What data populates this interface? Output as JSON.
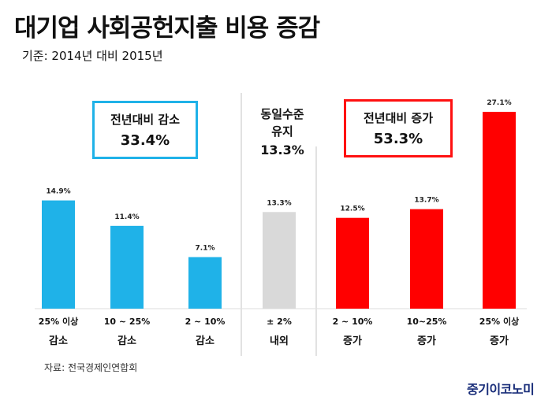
{
  "title": "대기업 사회공헌지출 비용 증감",
  "subtitle": "기준: 2014년 대비 2015년",
  "groups": {
    "decrease": {
      "label": "전년대비 감소",
      "total": "33.4%",
      "color": "#1fb2e8"
    },
    "same": {
      "line1": "동일수준",
      "line2": "유지",
      "total": "13.3%",
      "color": "#d9d9d9"
    },
    "increase": {
      "label": "전년대비 증가",
      "total": "53.3%",
      "color": "#ff0000"
    }
  },
  "source": "자료: 전국경제인연합회",
  "logo": "중기이코노미",
  "chart_data": {
    "type": "bar",
    "categories": [
      {
        "line1": "25% 이상",
        "line2": "감소"
      },
      {
        "line1": "10 ~ 25%",
        "line2": "감소"
      },
      {
        "line1": "2 ~ 10%",
        "line2": "감소"
      },
      {
        "line1": "± 2%",
        "line2": "내외"
      },
      {
        "line1": "2 ~ 10%",
        "line2": "증가"
      },
      {
        "line1": "10~25%",
        "line2": "증가"
      },
      {
        "line1": "25% 이상",
        "line2": "증가"
      }
    ],
    "values": [
      14.9,
      11.4,
      7.1,
      13.3,
      12.5,
      13.7,
      27.1
    ],
    "value_labels": [
      "14.9%",
      "11.4%",
      "7.1%",
      "13.3%",
      "12.5%",
      "13.7%",
      "27.1%"
    ],
    "group_of_bar": [
      "decrease",
      "decrease",
      "decrease",
      "same",
      "increase",
      "increase",
      "increase"
    ],
    "ylim": [
      0,
      27.1
    ],
    "grid": false
  }
}
